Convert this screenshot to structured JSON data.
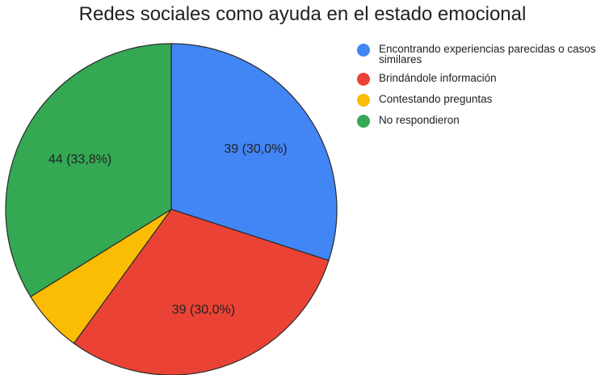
{
  "chart_data": {
    "type": "pie",
    "title": "Redes sociales como ayuda en el estado emocional",
    "slices": [
      {
        "label": "Encontrando experiencias parecidas o casos similares",
        "value": 39,
        "percent": "30,0%",
        "data_label": "39 (30,0%)",
        "color": "#4285f4"
      },
      {
        "label": "Brindándole información",
        "value": 39,
        "percent": "30,0%",
        "data_label": "39 (30,0%)",
        "color": "#ea4335"
      },
      {
        "label": "Contestando preguntas",
        "value": 8,
        "percent": "6,2%",
        "data_label": "",
        "color": "#fbbc04"
      },
      {
        "label": "No respondieron",
        "value": 44,
        "percent": "33,8%",
        "data_label": "44 (33,8%)",
        "color": "#34a853"
      }
    ],
    "legend_position": "right",
    "start_angle": "12 o'clock",
    "direction": "clockwise"
  },
  "legend": {
    "items": [
      {
        "label": "Encontrando experiencias parecidas o casos similares",
        "color": "#4285f4"
      },
      {
        "label": "Brindándole información",
        "color": "#ea4335"
      },
      {
        "label": "Contestando preguntas",
        "color": "#fbbc04"
      },
      {
        "label": "No respondieron",
        "color": "#34a853"
      }
    ]
  }
}
